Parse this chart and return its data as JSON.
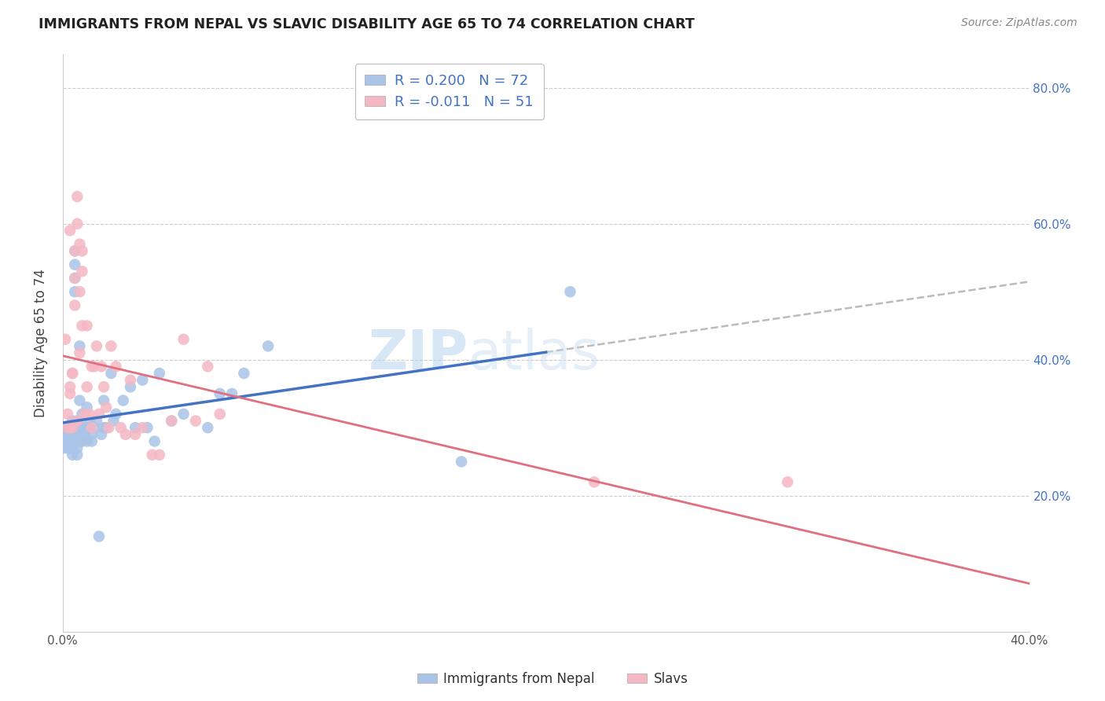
{
  "title": "IMMIGRANTS FROM NEPAL VS SLAVIC DISABILITY AGE 65 TO 74 CORRELATION CHART",
  "source": "Source: ZipAtlas.com",
  "ylabel": "Disability Age 65 to 74",
  "xlim": [
    0.0,
    0.4
  ],
  "ylim": [
    0.0,
    0.85
  ],
  "legend_nepal_R": "0.200",
  "legend_nepal_N": "72",
  "legend_slavs_R": "-0.011",
  "legend_slavs_N": "51",
  "color_nepal": "#aac4e8",
  "color_slavs": "#f4b8c4",
  "color_nepal_line": "#4472c4",
  "color_slavs_line": "#e07080",
  "background_color": "#ffffff",
  "grid_color": "#cccccc",
  "nepal_x": [
    0.0005,
    0.001,
    0.001,
    0.0015,
    0.002,
    0.002,
    0.002,
    0.002,
    0.003,
    0.003,
    0.003,
    0.003,
    0.003,
    0.003,
    0.004,
    0.004,
    0.004,
    0.004,
    0.004,
    0.004,
    0.004,
    0.005,
    0.005,
    0.005,
    0.005,
    0.005,
    0.006,
    0.006,
    0.006,
    0.006,
    0.006,
    0.007,
    0.007,
    0.007,
    0.007,
    0.008,
    0.008,
    0.008,
    0.009,
    0.009,
    0.01,
    0.01,
    0.011,
    0.011,
    0.012,
    0.012,
    0.013,
    0.014,
    0.015,
    0.016,
    0.017,
    0.017,
    0.018,
    0.02,
    0.021,
    0.022,
    0.025,
    0.028,
    0.03,
    0.033,
    0.035,
    0.038,
    0.04,
    0.045,
    0.05,
    0.06,
    0.065,
    0.07,
    0.075,
    0.085,
    0.165,
    0.21
  ],
  "nepal_y": [
    0.27,
    0.28,
    0.29,
    0.3,
    0.29,
    0.3,
    0.28,
    0.27,
    0.29,
    0.3,
    0.28,
    0.27,
    0.27,
    0.28,
    0.3,
    0.31,
    0.28,
    0.29,
    0.27,
    0.27,
    0.26,
    0.5,
    0.52,
    0.54,
    0.56,
    0.29,
    0.3,
    0.31,
    0.27,
    0.28,
    0.26,
    0.28,
    0.34,
    0.42,
    0.29,
    0.3,
    0.32,
    0.28,
    0.29,
    0.3,
    0.28,
    0.33,
    0.3,
    0.31,
    0.29,
    0.28,
    0.3,
    0.31,
    0.14,
    0.29,
    0.3,
    0.34,
    0.3,
    0.38,
    0.31,
    0.32,
    0.34,
    0.36,
    0.3,
    0.37,
    0.3,
    0.28,
    0.38,
    0.31,
    0.32,
    0.3,
    0.35,
    0.35,
    0.38,
    0.42,
    0.25,
    0.5
  ],
  "slavs_x": [
    0.001,
    0.002,
    0.002,
    0.003,
    0.003,
    0.003,
    0.004,
    0.004,
    0.005,
    0.005,
    0.006,
    0.006,
    0.007,
    0.007,
    0.008,
    0.008,
    0.009,
    0.01,
    0.011,
    0.012,
    0.013,
    0.014,
    0.015,
    0.016,
    0.017,
    0.018,
    0.019,
    0.02,
    0.022,
    0.024,
    0.026,
    0.028,
    0.03,
    0.033,
    0.037,
    0.04,
    0.045,
    0.05,
    0.055,
    0.06,
    0.065,
    0.22,
    0.3,
    0.003,
    0.004,
    0.005,
    0.006,
    0.007,
    0.008,
    0.01,
    0.012
  ],
  "slavs_y": [
    0.43,
    0.3,
    0.32,
    0.3,
    0.59,
    0.35,
    0.3,
    0.38,
    0.56,
    0.48,
    0.64,
    0.6,
    0.57,
    0.5,
    0.53,
    0.56,
    0.32,
    0.45,
    0.32,
    0.39,
    0.39,
    0.42,
    0.32,
    0.39,
    0.36,
    0.33,
    0.3,
    0.42,
    0.39,
    0.3,
    0.29,
    0.37,
    0.29,
    0.3,
    0.26,
    0.26,
    0.31,
    0.43,
    0.31,
    0.39,
    0.32,
    0.22,
    0.22,
    0.36,
    0.38,
    0.52,
    0.31,
    0.41,
    0.45,
    0.36,
    0.3
  ]
}
